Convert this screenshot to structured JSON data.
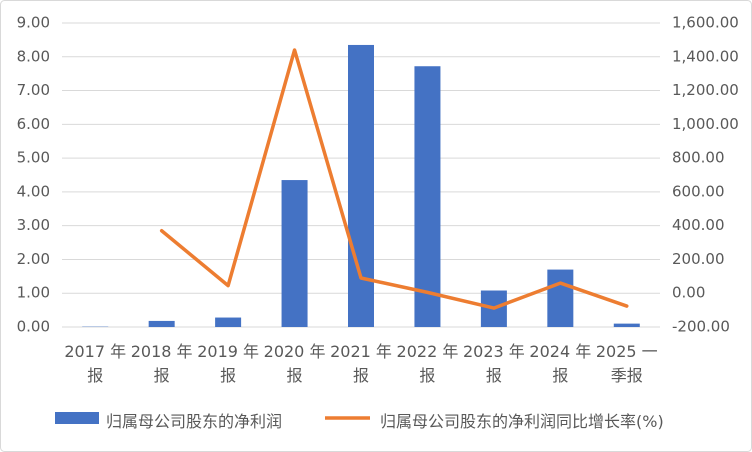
{
  "chart_data": {
    "type": "bar-line",
    "categories": [
      "2017 年报",
      "2018 年报",
      "2019 年报",
      "2020 年报",
      "2021 年报",
      "2022 年报",
      "2023 年报",
      "2024 年报",
      "2025 一季报"
    ],
    "series": [
      {
        "name": "归属母公司股东的净利润",
        "type": "bar",
        "color": "#4472c4",
        "values": [
          0.01,
          0.18,
          0.28,
          4.35,
          8.35,
          7.72,
          1.08,
          1.7,
          0.1
        ]
      },
      {
        "name": "归属母公司股东的净利润同比增长率(%)",
        "type": "line",
        "axis": "y2",
        "color": "#ed7d31",
        "values": [
          null,
          370,
          45,
          1440,
          90,
          5,
          -88,
          60,
          -76
        ]
      }
    ],
    "ylim": [
      0,
      9
    ],
    "yticks": [
      {
        "value": 0,
        "label": "0.00"
      },
      {
        "value": 1,
        "label": "1.00"
      },
      {
        "value": 2,
        "label": "2.00"
      },
      {
        "value": 3,
        "label": "3.00"
      },
      {
        "value": 4,
        "label": "4.00"
      },
      {
        "value": 5,
        "label": "5.00"
      },
      {
        "value": 6,
        "label": "6.00"
      },
      {
        "value": 7,
        "label": "7.00"
      },
      {
        "value": 8,
        "label": "8.00"
      },
      {
        "value": 9,
        "label": "9.00"
      }
    ],
    "y2lim": [
      -200,
      1600
    ],
    "y2ticks": [
      {
        "value": -200,
        "label": "-200.00"
      },
      {
        "value": 0,
        "label": "0.00"
      },
      {
        "value": 200,
        "label": "200.00"
      },
      {
        "value": 400,
        "label": "400.00"
      },
      {
        "value": 600,
        "label": "600.00"
      },
      {
        "value": 800,
        "label": "800.00"
      },
      {
        "value": 1000,
        "label": "1,000.00"
      },
      {
        "value": 1200,
        "label": "1,200.00"
      },
      {
        "value": 1400,
        "label": "1,400.00"
      },
      {
        "value": 1600,
        "label": "1,600.00"
      }
    ],
    "grid": true,
    "legend": "bottom"
  }
}
